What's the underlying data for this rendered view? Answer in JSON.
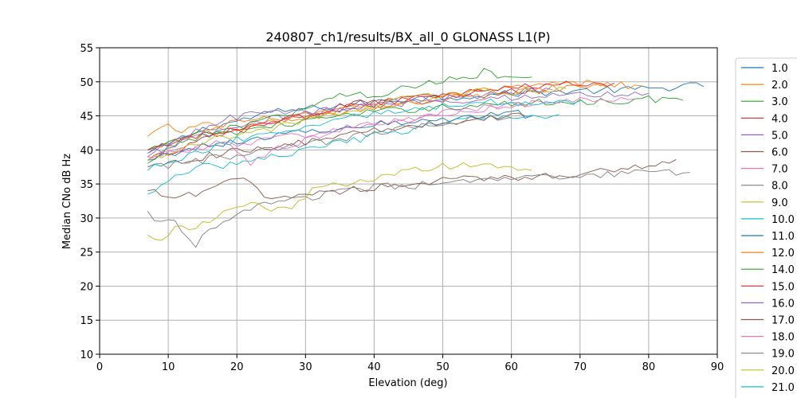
{
  "chart_data": {
    "type": "line",
    "title": "240807_ch1/results/BX_all_0 GLONASS L1(P)",
    "xlabel": "Elevation (deg)",
    "ylabel": "Median CNo dB Hz",
    "xlim": [
      0,
      90
    ],
    "ylim": [
      10,
      55
    ],
    "xticks": [
      0,
      10,
      20,
      30,
      40,
      50,
      60,
      70,
      80,
      90
    ],
    "yticks": [
      10,
      15,
      20,
      25,
      30,
      35,
      40,
      45,
      50,
      55
    ],
    "grid": true,
    "legend_position": "right, outside plot",
    "series": [
      {
        "name": "1.0",
        "color": "#1f77b4",
        "start": 7,
        "x_end": 88,
        "points": [
          [
            7,
            39.5
          ],
          [
            15,
            43
          ],
          [
            25,
            45.5
          ],
          [
            35,
            46.5
          ],
          [
            45,
            47.5
          ],
          [
            55,
            48
          ],
          [
            65,
            48.5
          ],
          [
            75,
            48.8
          ],
          [
            82,
            49
          ],
          [
            85,
            49.6
          ],
          [
            88,
            49.3
          ]
        ]
      },
      {
        "name": "2.0",
        "color": "#ff7f0e",
        "start": 7,
        "x_end": 79,
        "points": [
          [
            7,
            40
          ],
          [
            15,
            42.5
          ],
          [
            25,
            44
          ],
          [
            35,
            45.5
          ],
          [
            45,
            47
          ],
          [
            55,
            48.5
          ],
          [
            65,
            49.5
          ],
          [
            72,
            49.8
          ],
          [
            79,
            49.4
          ]
        ]
      },
      {
        "name": "3.0",
        "color": "#2ca02c",
        "start": 7,
        "x_end": 85,
        "points": [
          [
            7,
            40
          ],
          [
            15,
            42
          ],
          [
            25,
            43.5
          ],
          [
            35,
            45
          ],
          [
            45,
            46
          ],
          [
            55,
            46.5
          ],
          [
            65,
            47
          ],
          [
            75,
            47.2
          ],
          [
            80,
            47.5
          ],
          [
            85,
            47.3
          ]
        ]
      },
      {
        "name": "4.0",
        "color": "#d62728",
        "start": 7,
        "x_end": 75,
        "points": [
          [
            7,
            38.5
          ],
          [
            15,
            41.5
          ],
          [
            25,
            44
          ],
          [
            35,
            46
          ],
          [
            45,
            47.5
          ],
          [
            55,
            48.5
          ],
          [
            65,
            49.5
          ],
          [
            75,
            49.8
          ]
        ]
      },
      {
        "name": "5.0",
        "color": "#9467bd",
        "start": 7,
        "x_end": 80,
        "points": [
          [
            7,
            39.5
          ],
          [
            15,
            42
          ],
          [
            25,
            44.5
          ],
          [
            35,
            46
          ],
          [
            45,
            47
          ],
          [
            55,
            47.5
          ],
          [
            65,
            48
          ],
          [
            75,
            48.2
          ],
          [
            80,
            48.3
          ]
        ]
      },
      {
        "name": "6.0",
        "color": "#8c564b",
        "start": 7,
        "x_end": 84,
        "points": [
          [
            7,
            34
          ],
          [
            10,
            33
          ],
          [
            15,
            33.5
          ],
          [
            20,
            36
          ],
          [
            25,
            33
          ],
          [
            30,
            33.5
          ],
          [
            40,
            34.5
          ],
          [
            50,
            35.5
          ],
          [
            60,
            36
          ],
          [
            70,
            36.5
          ],
          [
            78,
            37.5
          ],
          [
            84,
            38.6
          ]
        ]
      },
      {
        "name": "7.0",
        "color": "#e377c2",
        "start": 7,
        "x_end": 78,
        "points": [
          [
            7,
            39
          ],
          [
            15,
            40.5
          ],
          [
            25,
            41.5
          ],
          [
            35,
            43
          ],
          [
            45,
            44.5
          ],
          [
            55,
            46
          ],
          [
            65,
            47
          ],
          [
            75,
            47.5
          ],
          [
            78,
            47.5
          ]
        ]
      },
      {
        "name": "8.0",
        "color": "#7f7f7f",
        "start": 7,
        "x_end": 86,
        "points": [
          [
            7,
            31
          ],
          [
            9,
            29
          ],
          [
            11,
            29.5
          ],
          [
            14,
            26.2
          ],
          [
            16,
            28
          ],
          [
            19,
            29.5
          ],
          [
            22,
            31.5
          ],
          [
            25,
            32.5
          ],
          [
            30,
            33
          ],
          [
            40,
            34.5
          ],
          [
            50,
            35
          ],
          [
            60,
            35.8
          ],
          [
            70,
            36
          ],
          [
            80,
            36.8
          ],
          [
            86,
            36.7
          ]
        ]
      },
      {
        "name": "9.0",
        "color": "#bcbd22",
        "start": 7,
        "x_end": 63,
        "points": [
          [
            7,
            27.5
          ],
          [
            9,
            27
          ],
          [
            11,
            28.5
          ],
          [
            14,
            28.5
          ],
          [
            17,
            30
          ],
          [
            20,
            31.5
          ],
          [
            22,
            32.5
          ],
          [
            25,
            31
          ],
          [
            28,
            31.5
          ],
          [
            31,
            34
          ],
          [
            35,
            35
          ],
          [
            40,
            35.5
          ],
          [
            45,
            37
          ],
          [
            50,
            37.5
          ],
          [
            55,
            38
          ],
          [
            60,
            37.2
          ],
          [
            63,
            37
          ]
        ]
      },
      {
        "name": "10.0",
        "color": "#17becf",
        "start": 7,
        "x_end": 67,
        "points": [
          [
            7,
            33.5
          ],
          [
            10,
            35.5
          ],
          [
            15,
            37.5
          ],
          [
            20,
            38
          ],
          [
            25,
            39
          ],
          [
            30,
            40
          ],
          [
            35,
            41
          ],
          [
            40,
            42
          ],
          [
            45,
            43
          ],
          [
            50,
            44
          ],
          [
            55,
            44.5
          ],
          [
            60,
            45
          ],
          [
            67,
            45.2
          ]
        ]
      },
      {
        "name": "11.0",
        "color": "#1f77b4",
        "start": 7,
        "x_end": 63,
        "points": [
          [
            7,
            38.5
          ],
          [
            12,
            40
          ],
          [
            18,
            41
          ],
          [
            25,
            42
          ],
          [
            32,
            43
          ],
          [
            38,
            43.5
          ],
          [
            45,
            44
          ],
          [
            50,
            44.5
          ],
          [
            55,
            45
          ],
          [
            60,
            45.5
          ],
          [
            63,
            45
          ]
        ]
      },
      {
        "name": "12.0",
        "color": "#ff7f0e",
        "start": 7,
        "x_end": 74,
        "points": [
          [
            7,
            42
          ],
          [
            9,
            43.8
          ],
          [
            12,
            43
          ],
          [
            15,
            43.5
          ],
          [
            20,
            44
          ],
          [
            25,
            44.5
          ],
          [
            30,
            45
          ],
          [
            35,
            45.8
          ],
          [
            40,
            46.5
          ],
          [
            45,
            47
          ],
          [
            50,
            47.5
          ],
          [
            55,
            48
          ],
          [
            60,
            48.5
          ],
          [
            65,
            49
          ],
          [
            70,
            49.2
          ],
          [
            74,
            49.2
          ]
        ]
      },
      {
        "name": "14.0",
        "color": "#2ca02c",
        "start": 7,
        "x_end": 63,
        "points": [
          [
            7,
            38
          ],
          [
            12,
            41.5
          ],
          [
            18,
            43
          ],
          [
            25,
            44.5
          ],
          [
            30,
            46
          ],
          [
            35,
            48.5
          ],
          [
            40,
            48
          ],
          [
            45,
            49.5
          ],
          [
            50,
            50
          ],
          [
            55,
            51
          ],
          [
            56,
            51.6
          ],
          [
            58,
            50.8
          ],
          [
            62,
            50.6
          ],
          [
            63,
            50.7
          ]
        ]
      },
      {
        "name": "15.0",
        "color": "#d62728",
        "start": 7,
        "x_end": 65,
        "points": [
          [
            7,
            40
          ],
          [
            12,
            41.5
          ],
          [
            18,
            42.5
          ],
          [
            25,
            44
          ],
          [
            30,
            45
          ],
          [
            35,
            46.5
          ],
          [
            40,
            47
          ],
          [
            45,
            47.5
          ],
          [
            50,
            48
          ],
          [
            55,
            48.5
          ],
          [
            60,
            48.5
          ],
          [
            65,
            48.8
          ]
        ]
      },
      {
        "name": "16.0",
        "color": "#9467bd",
        "start": 7,
        "x_end": 66,
        "points": [
          [
            7,
            39
          ],
          [
            12,
            42
          ],
          [
            18,
            44.5
          ],
          [
            25,
            45.5
          ],
          [
            30,
            45.5
          ],
          [
            35,
            46
          ],
          [
            40,
            46.5
          ],
          [
            45,
            47.5
          ],
          [
            50,
            47.5
          ],
          [
            55,
            48
          ],
          [
            60,
            48.5
          ],
          [
            66,
            48.8
          ]
        ]
      },
      {
        "name": "17.0",
        "color": "#8c564b",
        "start": 7,
        "x_end": 62,
        "points": [
          [
            7,
            37.5
          ],
          [
            12,
            38.5
          ],
          [
            18,
            39.5
          ],
          [
            25,
            40.5
          ],
          [
            30,
            41
          ],
          [
            35,
            42
          ],
          [
            40,
            43
          ],
          [
            45,
            43.5
          ],
          [
            50,
            44
          ],
          [
            55,
            44.5
          ],
          [
            60,
            45
          ],
          [
            62,
            45
          ]
        ]
      },
      {
        "name": "18.0",
        "color": "#e377c2",
        "start": 7,
        "x_end": 63,
        "points": [
          [
            7,
            38.5
          ],
          [
            12,
            40
          ],
          [
            18,
            41
          ],
          [
            22,
            38
          ],
          [
            25,
            40
          ],
          [
            30,
            41.5
          ],
          [
            35,
            43
          ],
          [
            40,
            44
          ],
          [
            45,
            44.5
          ],
          [
            50,
            45.5
          ],
          [
            55,
            46
          ],
          [
            60,
            46.5
          ],
          [
            63,
            46.5
          ]
        ]
      },
      {
        "name": "19.0",
        "color": "#7f7f7f",
        "start": 7,
        "x_end": 60,
        "points": [
          [
            7,
            37.5
          ],
          [
            12,
            38
          ],
          [
            18,
            39
          ],
          [
            25,
            40
          ],
          [
            30,
            41
          ],
          [
            35,
            41.5
          ],
          [
            40,
            42.5
          ],
          [
            45,
            43.5
          ],
          [
            50,
            44
          ],
          [
            55,
            44.5
          ],
          [
            60,
            44.8
          ]
        ]
      },
      {
        "name": "20.0",
        "color": "#bcbd22",
        "start": 7,
        "x_end": 68,
        "points": [
          [
            7,
            38.5
          ],
          [
            12,
            40.5
          ],
          [
            18,
            42
          ],
          [
            25,
            43
          ],
          [
            30,
            44.5
          ],
          [
            35,
            45.5
          ],
          [
            40,
            46.5
          ],
          [
            45,
            47.5
          ],
          [
            50,
            48
          ],
          [
            55,
            48.5
          ],
          [
            60,
            48.5
          ],
          [
            65,
            49
          ],
          [
            68,
            49
          ]
        ]
      },
      {
        "name": "21.0",
        "color": "#17becf",
        "start": 7,
        "x_end": 70,
        "points": [
          [
            7,
            37
          ],
          [
            12,
            39
          ],
          [
            18,
            41
          ],
          [
            25,
            42.5
          ],
          [
            30,
            43.5
          ],
          [
            35,
            44.5
          ],
          [
            40,
            45.5
          ],
          [
            45,
            46
          ],
          [
            50,
            46.5
          ],
          [
            55,
            47
          ],
          [
            60,
            47
          ],
          [
            65,
            47
          ],
          [
            70,
            47.2
          ]
        ]
      }
    ]
  }
}
